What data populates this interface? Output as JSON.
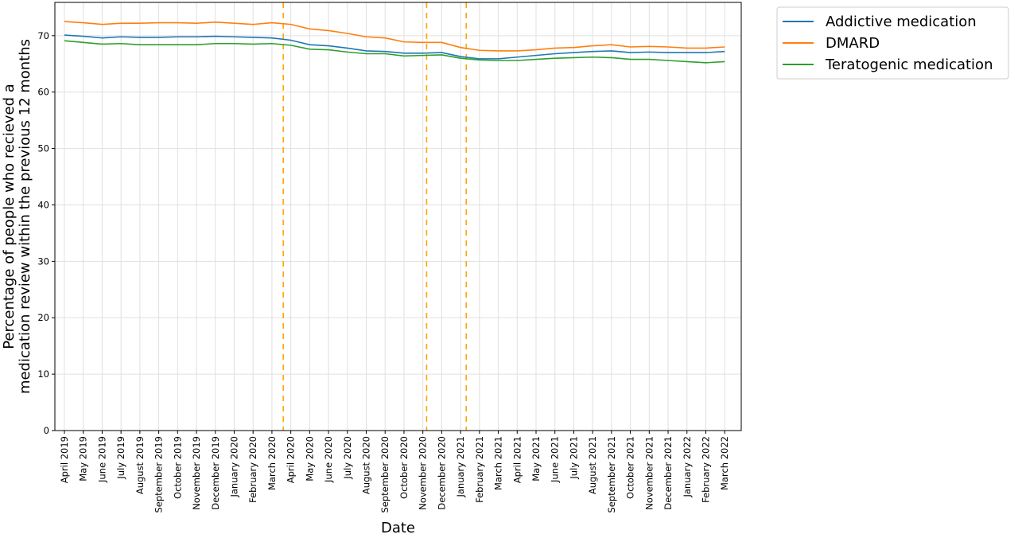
{
  "chart_data": {
    "type": "line",
    "title": "",
    "xlabel": "Date",
    "ylabel_lines": [
      "Percentage of people who recieved a",
      "medication review within the previous 12 months"
    ],
    "ylim": [
      0,
      75.9
    ],
    "yticks": [
      0,
      10,
      20,
      30,
      40,
      50,
      60,
      70
    ],
    "grid": true,
    "legend_placement": "outside-top-right",
    "categories": [
      "April 2019",
      "May 2019",
      "June 2019",
      "July 2019",
      "August 2019",
      "September 2019",
      "October 2019",
      "November 2019",
      "December 2019",
      "January 2020",
      "February 2020",
      "March 2020",
      "April 2020",
      "May 2020",
      "June 2020",
      "July 2020",
      "August 2020",
      "September 2020",
      "October 2020",
      "November 2020",
      "December 2020",
      "January 2021",
      "February 2021",
      "March 2021",
      "April 2021",
      "May 2021",
      "June 2021",
      "July 2021",
      "August 2021",
      "September 2021",
      "October 2021",
      "November 2021",
      "December 2021",
      "January 2022",
      "February 2022",
      "March 2022"
    ],
    "series": [
      {
        "name": "Addictive medication",
        "color": "#1f77b4",
        "values": [
          70.1,
          69.9,
          69.6,
          69.8,
          69.7,
          69.7,
          69.8,
          69.8,
          69.9,
          69.8,
          69.7,
          69.6,
          69.2,
          68.4,
          68.2,
          67.8,
          67.3,
          67.2,
          66.9,
          66.9,
          67.0,
          66.3,
          65.9,
          65.9,
          66.2,
          66.5,
          66.8,
          67.0,
          67.2,
          67.3,
          67.0,
          67.1,
          67.0,
          67.0,
          67.0,
          67.2
        ]
      },
      {
        "name": "DMARD",
        "color": "#ff7f0e",
        "values": [
          72.5,
          72.3,
          72.0,
          72.2,
          72.2,
          72.3,
          72.3,
          72.2,
          72.4,
          72.2,
          72.0,
          72.3,
          72.0,
          71.2,
          70.9,
          70.4,
          69.8,
          69.6,
          68.9,
          68.8,
          68.8,
          67.9,
          67.4,
          67.3,
          67.3,
          67.5,
          67.8,
          67.9,
          68.2,
          68.4,
          68.0,
          68.1,
          68.0,
          67.8,
          67.8,
          68.0
        ]
      },
      {
        "name": "Teratogenic medication",
        "color": "#2ca02c",
        "values": [
          69.1,
          68.8,
          68.5,
          68.6,
          68.4,
          68.4,
          68.4,
          68.4,
          68.6,
          68.6,
          68.5,
          68.6,
          68.3,
          67.6,
          67.5,
          67.1,
          66.8,
          66.8,
          66.4,
          66.5,
          66.6,
          66.0,
          65.7,
          65.6,
          65.6,
          65.8,
          66.0,
          66.1,
          66.2,
          66.1,
          65.8,
          65.8,
          65.6,
          65.4,
          65.2,
          65.4
        ]
      }
    ],
    "vlines": [
      {
        "x": 11.6,
        "color": "#ffa500",
        "style": "dashed"
      },
      {
        "x": 19.2,
        "color": "#ffa500",
        "style": "dashed"
      },
      {
        "x": 21.3,
        "color": "#ffa500",
        "style": "dashed"
      }
    ],
    "colors": {
      "grid": "#e0e0e0",
      "frame": "#000000"
    }
  }
}
